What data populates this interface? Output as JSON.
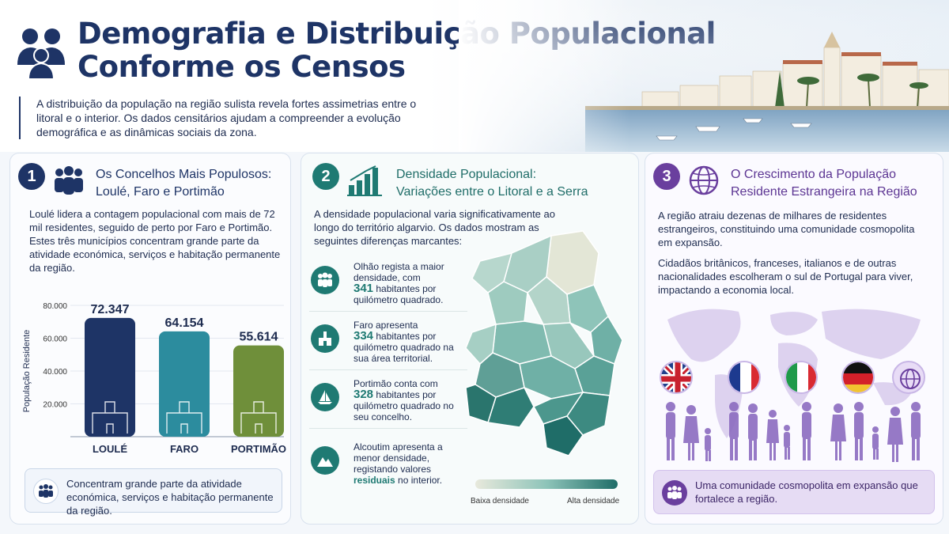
{
  "header": {
    "title_line1": "Demografia e Distribuição Populacional",
    "title_line2": "Conforme os Censos",
    "intro": "A distribuição da população na região sulista revela fortes assimetrias entre o litoral e o interior. Os dados censitários ajudam a compreender a evolução demográfica e as dinâmicas sociais da zona."
  },
  "panel1": {
    "number": "1",
    "title_line1": "Os Concelhos Mais Populosos:",
    "title_line2": "Loulé, Faro e Portimão",
    "text": "Loulé lidera a contagem populacional com mais de 72 mil residentes, seguido de perto por Faro e Portimão. Estes três municípios concentram grande parte da atividade económica, serviços e habitação permanente da região.",
    "footer": "Concentram grande parte da atividade económica, serviços e habitação permanente da região."
  },
  "chart_data": {
    "type": "bar",
    "categories": [
      "LOULÉ",
      "FARO",
      "PORTIMÃO"
    ],
    "values": [
      72347,
      64154,
      55614
    ],
    "value_labels": [
      "72.347",
      "64.154",
      "55.614"
    ],
    "ylabel": "População Residente",
    "ylim": [
      0,
      80000
    ],
    "yticks": [
      "80.000",
      "60.000",
      "40.000",
      "20.000"
    ],
    "colors": [
      "#1e3466",
      "#2c8c9e",
      "#6f8f3a"
    ]
  },
  "panel2": {
    "number": "2",
    "title_line1": "Densidade Populacional:",
    "title_line2": "Variações entre o Litoral e a Serra",
    "text": "A densidade populacional varia significativamente ao longo do território algarvio. Os dados mostram as seguintes diferenças marcantes:",
    "items": [
      {
        "pre": "Olhão regista a maior densidade, com",
        "value": "341",
        "post": "habitantes por quilómetro quadrado."
      },
      {
        "pre": "Faro apresenta",
        "value": "334",
        "post": "habitantes por quilómetro quadrado na sua área territorial."
      },
      {
        "pre": "Portimão conta com",
        "value": "328",
        "post": "habitantes por quilómetro quadrado no seu concelho."
      },
      {
        "pre": "Alcoutim apresenta a menor densidade, registando valores",
        "value": "residuais",
        "post": "no interior."
      }
    ],
    "legend_low": "Baixa densidade",
    "legend_high": "Alta densidade"
  },
  "panel3": {
    "number": "3",
    "title_line1": "O Crescimento da População",
    "title_line2": "Residente Estrangeira na Região",
    "text1": "A região atraiu dezenas de milhares de residentes estrangeiros, constituindo uma comunidade cosmopolita em expansão.",
    "text2": "Cidadãos britânicos, franceses, italianos e de outras nacionalidades escolheram o sul de Portugal para viver, impactando a economia local.",
    "footer": "Uma comunidade cosmopolita em expansão que fortalece a região."
  }
}
